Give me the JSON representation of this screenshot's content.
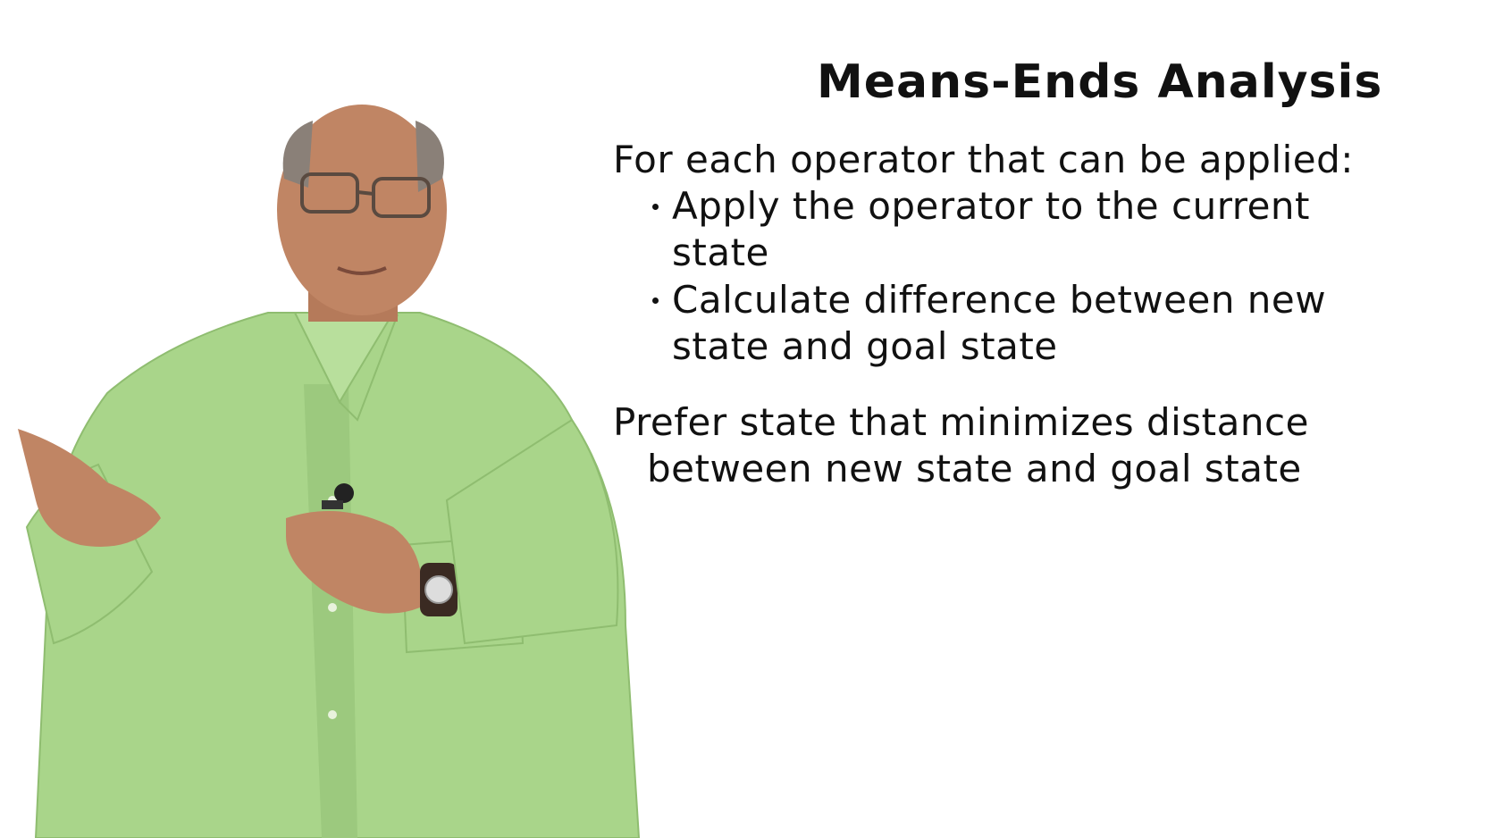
{
  "slide": {
    "title": "Means-Ends Analysis",
    "intro": "For each operator that can be applied:",
    "bullets": [
      {
        "line1": "Apply the operator to the current",
        "line2": "state"
      },
      {
        "line1": "Calculate difference between new",
        "line2": "state and goal state"
      }
    ],
    "conclusion": {
      "line1": "Prefer state that minimizes distance",
      "line2": "between new state and goal state"
    }
  },
  "colors": {
    "background": "#ffffff",
    "text": "#111111",
    "shirt": "#a9d58a"
  }
}
